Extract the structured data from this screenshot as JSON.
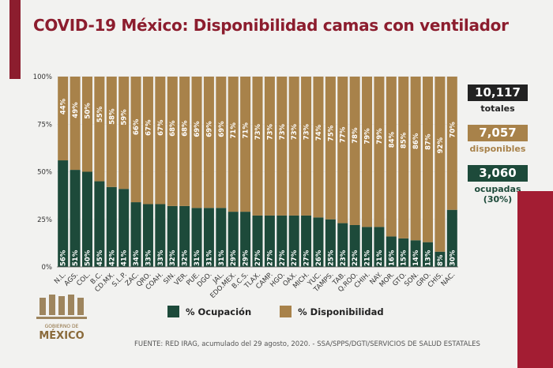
{
  "title": "COVID-19 México: Disponibilidad camas con ventilador",
  "summary": {
    "total": "10,117",
    "total_label": "totales",
    "available": "7,057",
    "available_label": "disponibles",
    "occupied": "3,060",
    "occupied_label": "ocupadas",
    "occupied_pct": "(30%)"
  },
  "footer": "FUENTE: RED IRAG, acumulado del 29 agosto, 2020.  - SSA/SPPS/DGTI/SERVICIOS DE SALUD ESTATALES",
  "logo_text": "GOBIERNO DE MÉXICO",
  "colors": {
    "ocupacion": "#1d4a3a",
    "disponibilidad": "#a8824a",
    "title": "#8c1d2e"
  },
  "chart_data": {
    "type": "bar",
    "stacked": true,
    "ylim": [
      0,
      100
    ],
    "yticks": [
      "0%",
      "25%",
      "50%",
      "75%",
      "100%"
    ],
    "categories": [
      "N.L.",
      "AGS.",
      "COL.",
      "B.C.",
      "CD.MX.",
      "S.L.P.",
      "ZAC.",
      "QRO.",
      "COAH.",
      "SIN.",
      "VER.",
      "PUE.",
      "DGO.",
      "JAL.",
      "EDO.MEX.",
      "B.C.S.",
      "TLAX.",
      "CAMP.",
      "HGO.",
      "OAX.",
      "MICH.",
      "YUC.",
      "TAMPS.",
      "TAB.",
      "Q.ROO.",
      "CHIH.",
      "NAY.",
      "MOR.",
      "GTO.",
      "SON.",
      "GRO.",
      "CHIS.",
      "NAC."
    ],
    "series": [
      {
        "name": "% Ocupación",
        "values": [
          56,
          51,
          50,
          45,
          42,
          41,
          34,
          33,
          33,
          32,
          32,
          31,
          31,
          31,
          29,
          29,
          27,
          27,
          27,
          27,
          27,
          26,
          25,
          23,
          22,
          21,
          21,
          16,
          15,
          14,
          13,
          8,
          30
        ]
      },
      {
        "name": "% Disponibilidad",
        "values": [
          44,
          49,
          50,
          55,
          58,
          59,
          66,
          67,
          67,
          68,
          68,
          69,
          69,
          69,
          71,
          71,
          73,
          73,
          73,
          73,
          73,
          74,
          75,
          77,
          78,
          79,
          79,
          84,
          85,
          86,
          87,
          92,
          70
        ]
      }
    ],
    "legend": "bottom",
    "grid": true
  }
}
